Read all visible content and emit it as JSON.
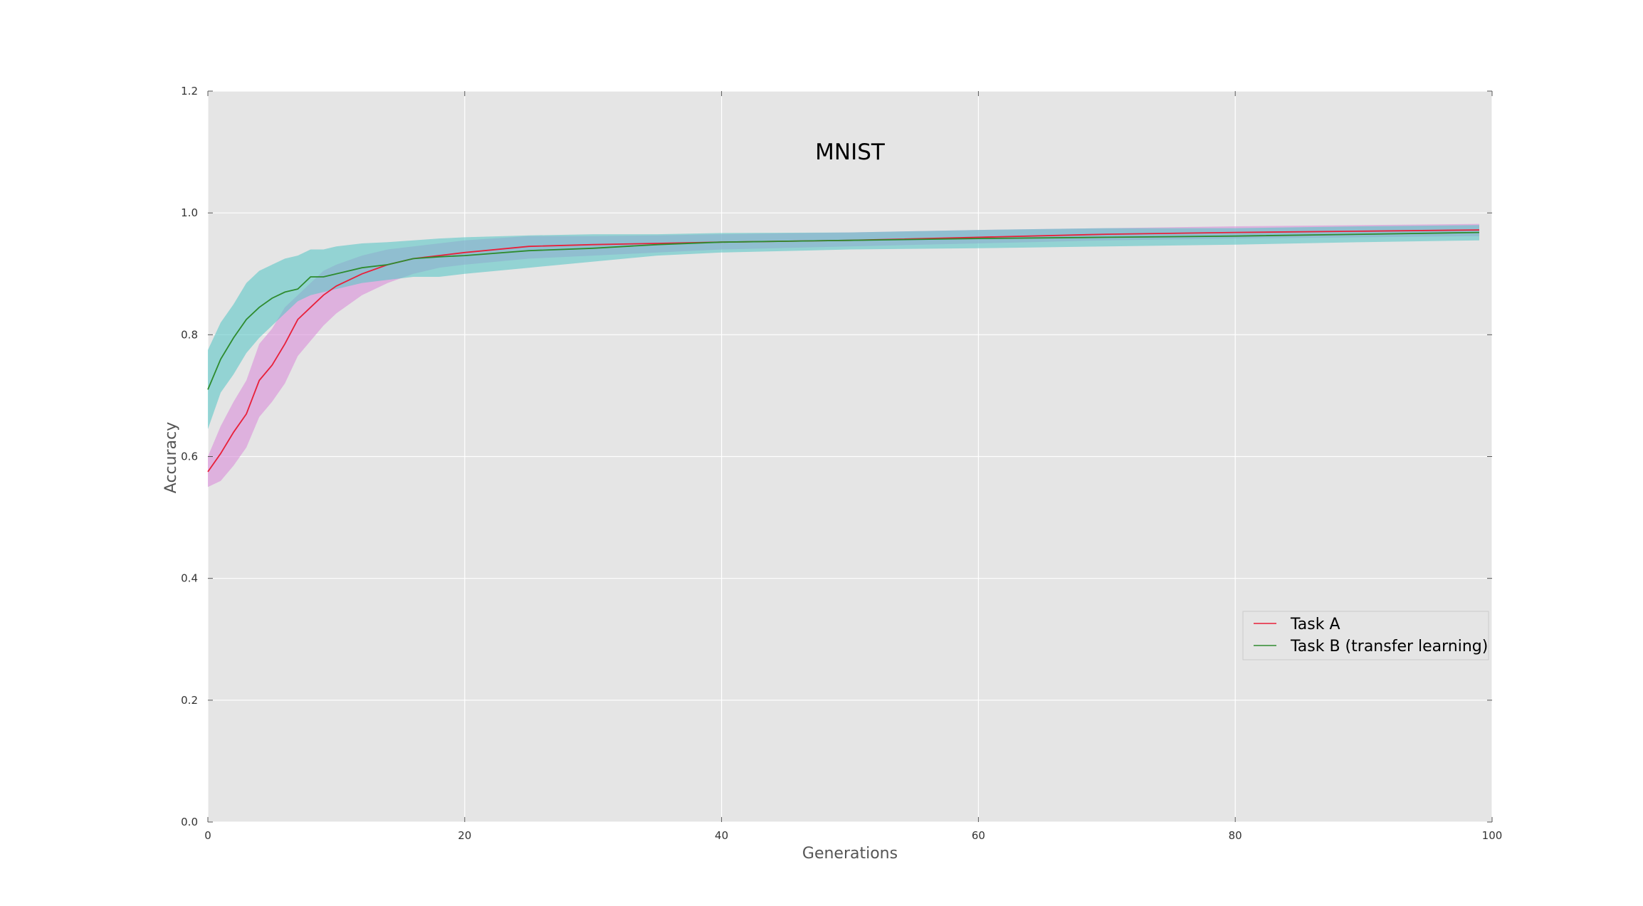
{
  "chart_data": {
    "type": "line",
    "title": "MNIST",
    "xlabel": "Generations",
    "ylabel": "Accuracy",
    "xlim": [
      0,
      100
    ],
    "ylim": [
      0.0,
      1.2
    ],
    "xticks": [
      0,
      20,
      40,
      60,
      80,
      100
    ],
    "yticks": [
      0.0,
      0.2,
      0.4,
      0.6,
      0.8,
      1.0,
      1.2
    ],
    "grid": true,
    "legend_position": "lower-right",
    "series": [
      {
        "name": "Task A",
        "color": "#e8203a",
        "band_color": "#d98ed8",
        "x": [
          0,
          1,
          2,
          3,
          4,
          5,
          6,
          7,
          8,
          9,
          10,
          12,
          14,
          16,
          18,
          20,
          25,
          30,
          35,
          40,
          50,
          60,
          70,
          80,
          90,
          99
        ],
        "values": [
          0.575,
          0.605,
          0.64,
          0.67,
          0.725,
          0.75,
          0.785,
          0.825,
          0.845,
          0.865,
          0.88,
          0.9,
          0.915,
          0.925,
          0.93,
          0.935,
          0.945,
          0.948,
          0.95,
          0.952,
          0.955,
          0.96,
          0.965,
          0.968,
          0.97,
          0.972
        ],
        "lower": [
          0.55,
          0.56,
          0.585,
          0.615,
          0.665,
          0.69,
          0.72,
          0.765,
          0.79,
          0.815,
          0.835,
          0.865,
          0.885,
          0.9,
          0.91,
          0.915,
          0.925,
          0.93,
          0.935,
          0.94,
          0.945,
          0.95,
          0.955,
          0.958,
          0.96,
          0.962
        ],
        "upper": [
          0.6,
          0.65,
          0.69,
          0.725,
          0.785,
          0.81,
          0.845,
          0.865,
          0.885,
          0.905,
          0.915,
          0.93,
          0.94,
          0.945,
          0.95,
          0.955,
          0.962,
          0.962,
          0.963,
          0.965,
          0.968,
          0.972,
          0.975,
          0.978,
          0.98,
          0.982
        ]
      },
      {
        "name": "Task B (transfer learning)",
        "color": "#2e8b2e",
        "band_color": "#5cc6c6",
        "x": [
          0,
          1,
          2,
          3,
          4,
          5,
          6,
          7,
          8,
          9,
          10,
          12,
          14,
          16,
          18,
          20,
          25,
          30,
          35,
          40,
          50,
          60,
          70,
          80,
          90,
          99
        ],
        "values": [
          0.71,
          0.76,
          0.795,
          0.825,
          0.845,
          0.86,
          0.87,
          0.875,
          0.895,
          0.895,
          0.9,
          0.91,
          0.915,
          0.925,
          0.928,
          0.93,
          0.938,
          0.942,
          0.948,
          0.952,
          0.955,
          0.958,
          0.96,
          0.962,
          0.965,
          0.968
        ],
        "lower": [
          0.645,
          0.705,
          0.735,
          0.77,
          0.795,
          0.815,
          0.835,
          0.855,
          0.865,
          0.87,
          0.875,
          0.885,
          0.89,
          0.895,
          0.895,
          0.9,
          0.91,
          0.92,
          0.93,
          0.935,
          0.94,
          0.942,
          0.945,
          0.948,
          0.952,
          0.955
        ],
        "upper": [
          0.775,
          0.82,
          0.85,
          0.885,
          0.905,
          0.915,
          0.925,
          0.93,
          0.94,
          0.94,
          0.945,
          0.95,
          0.952,
          0.955,
          0.958,
          0.96,
          0.963,
          0.965,
          0.965,
          0.967,
          0.968,
          0.972,
          0.975,
          0.975,
          0.978,
          0.98
        ]
      }
    ]
  }
}
